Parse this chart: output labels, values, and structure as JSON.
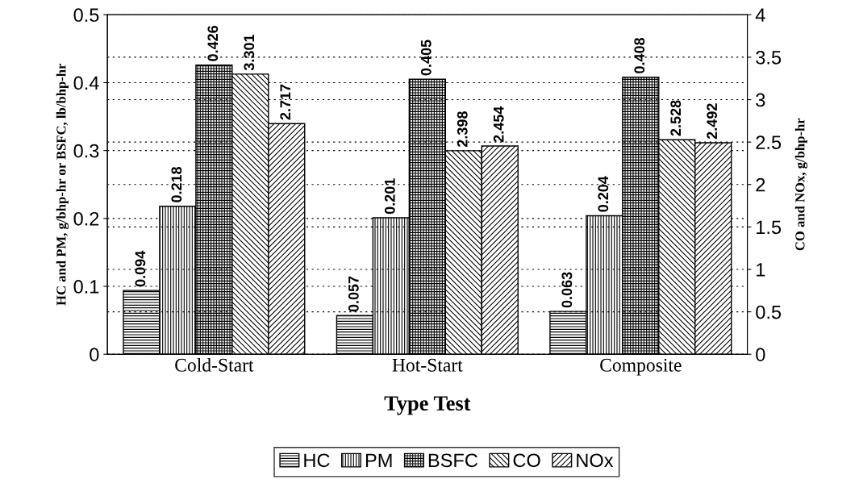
{
  "chart_data": {
    "type": "bar",
    "xlabel": "Type Test",
    "ylabel": "HC and PM, g/bhp-hr or BSFC, lb/bhp-hr",
    "y2label": "CO and NOx, g/bhp-hr",
    "categories": [
      "Cold-Start",
      "Hot-Start",
      "Composite"
    ],
    "series": [
      {
        "name": "HC",
        "color": "#000000",
        "values": [
          0.094,
          0.057,
          0.063
        ]
      },
      {
        "name": "PM",
        "color": "#000000",
        "values": [
          0.218,
          0.201,
          0.204
        ]
      },
      {
        "name": "BSFC",
        "color": "#000000",
        "values": [
          0.426,
          0.405,
          0.408
        ]
      },
      {
        "name": "CO",
        "color": "#000000",
        "axis": "y2",
        "values": [
          3.301,
          2.398,
          2.528
        ]
      },
      {
        "name": "NOx",
        "color": "#000000",
        "axis": "y2",
        "values": [
          2.717,
          2.454,
          2.492
        ]
      }
    ],
    "ylim": [
      0,
      0.5
    ],
    "yticks": [
      0,
      0.1,
      0.2,
      0.3,
      0.4,
      0.5
    ],
    "y2lim": [
      0,
      4
    ],
    "y2ticks": [
      0,
      0.5,
      1,
      1.5,
      2,
      2.5,
      3,
      3.5,
      4
    ],
    "data_labels": true,
    "grid": "y",
    "legend": "bottom"
  }
}
